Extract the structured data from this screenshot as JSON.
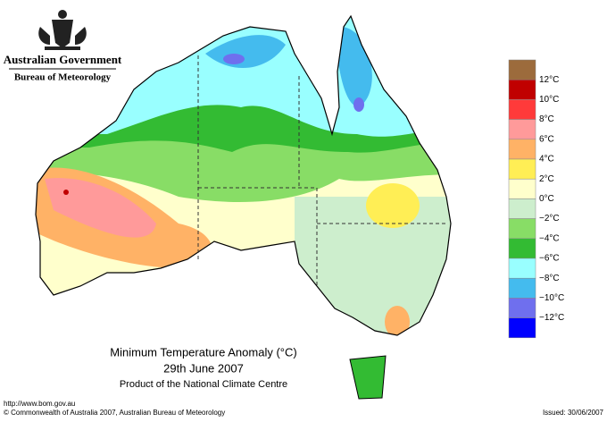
{
  "header": {
    "government": "Australian Government",
    "agency": "Bureau of Meteorology"
  },
  "map": {
    "title": "Minimum Temperature Anomaly (°C)",
    "date": "29th June 2007",
    "product": "Product of the National Climate Centre"
  },
  "legend": {
    "colors": [
      "#9c6b3c",
      "#c00000",
      "#ff3a3a",
      "#ff9a9a",
      "#ffb266",
      "#ffee55",
      "#ffffcc",
      "#cdeecd",
      "#88dd66",
      "#33bb33",
      "#99ffff",
      "#44bbee",
      "#6f6fee",
      "#0000ff"
    ],
    "labels": [
      "12°C",
      "10°C",
      "8°C",
      "6°C",
      "4°C",
      "2°C",
      "0°C",
      "−2°C",
      "−4°C",
      "−6°C",
      "−8°C",
      "−10°C",
      "−12°C"
    ]
  },
  "footer": {
    "url": "http://www.bom.gov.au",
    "copyright": "© Commonwealth of Australia 2007, Australian Bureau of Meteorology",
    "issued": "Issued: 30/06/2007"
  }
}
